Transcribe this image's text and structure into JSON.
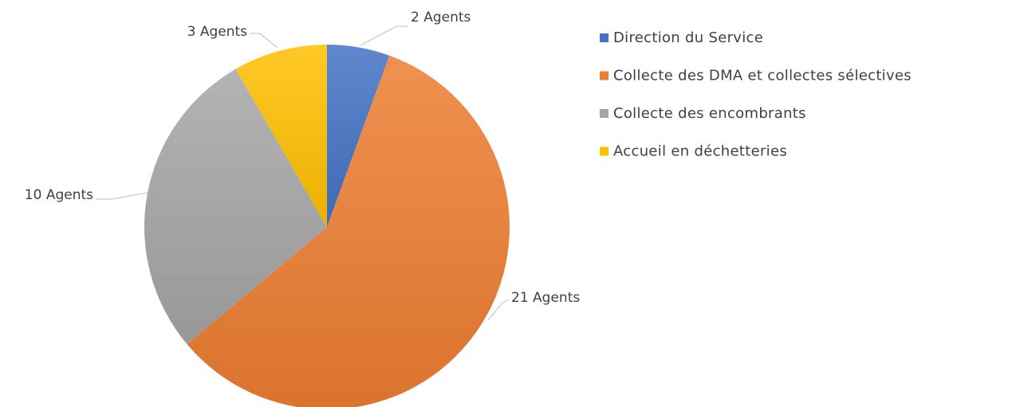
{
  "chart_data": {
    "type": "pie",
    "categories": [
      "Direction du Service",
      "Collecte des DMA et collectes sélectives",
      "Collecte des encombrants",
      "Accueil en déchetteries"
    ],
    "values": [
      2,
      21,
      10,
      3
    ],
    "value_labels": [
      "2 Agents",
      "21 Agents",
      "10 Agents",
      "3 Agents"
    ],
    "colors": [
      "#4472c4",
      "#ed7d31",
      "#a5a5a5",
      "#ffc000"
    ],
    "legend": "right"
  }
}
